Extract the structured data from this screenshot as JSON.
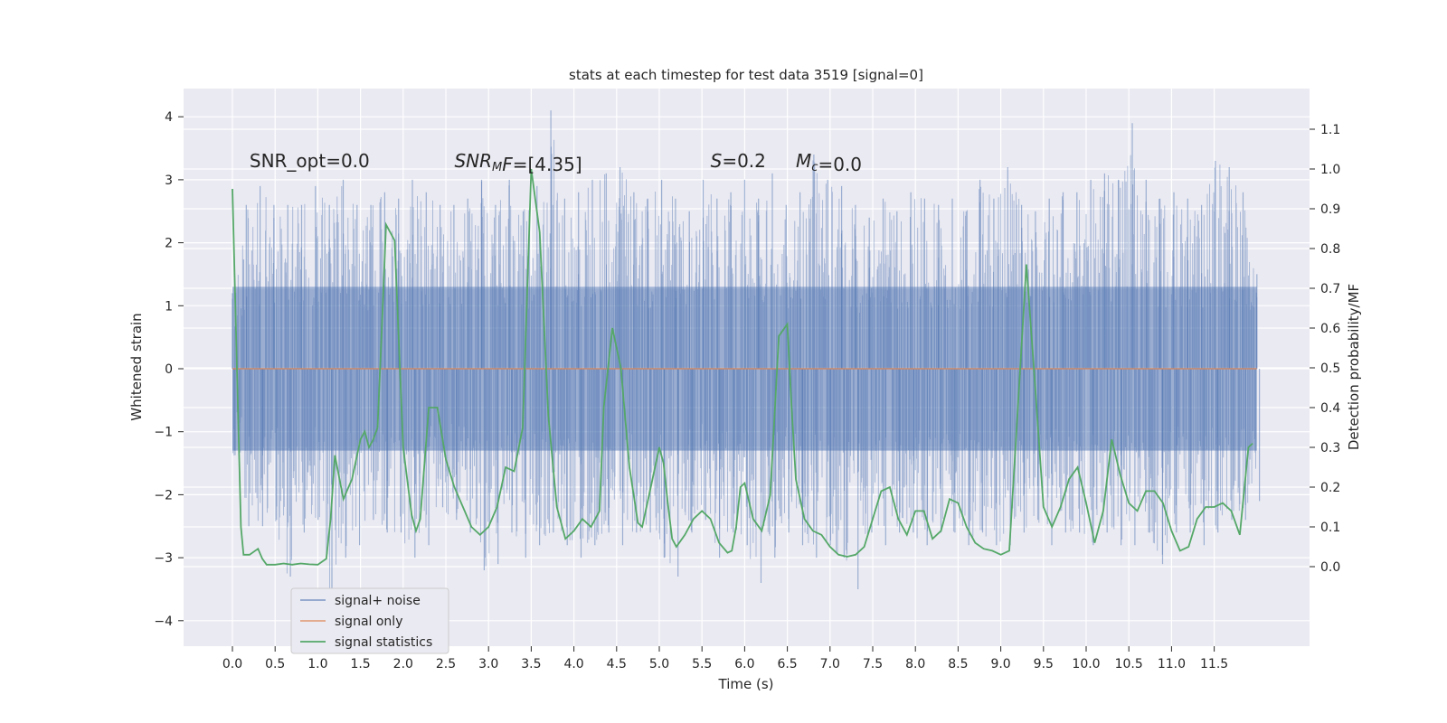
{
  "chart_data": {
    "type": "line",
    "title": "stats at each timestep for test data 3519 [signal=0]",
    "xlabel": "Time (s)",
    "ylabel": "Whitened strain",
    "ylabel_right": "Detection probability/MF",
    "xlim": [
      -0.5,
      12.7
    ],
    "ylim": [
      -4.4,
      4.4
    ],
    "ylim_right": [
      -0.2,
      1.2
    ],
    "x_ticks": [
      "0.0",
      "0.5",
      "1.0",
      "1.5",
      "2.0",
      "2.5",
      "3.0",
      "3.5",
      "4.0",
      "4.5",
      "5.0",
      "5.5",
      "6.0",
      "6.5",
      "7.0",
      "7.5",
      "8.0",
      "8.5",
      "9.0",
      "9.5",
      "10.0",
      "10.5",
      "11.0",
      "11.5"
    ],
    "y_ticks": [
      "4",
      "3",
      "2",
      "1",
      "0",
      "−1",
      "−2",
      "−3",
      "−4"
    ],
    "y_ticks_right": [
      "1.1",
      "1.0",
      "0.9",
      "0.8",
      "0.7",
      "0.6",
      "0.5",
      "0.4",
      "0.3",
      "0.2",
      "0.1",
      "0.0"
    ],
    "grid": true,
    "legend_position": "lower-left",
    "annotations": [
      {
        "text": "SNR_opt=0.0",
        "x": 0.2,
        "y": 3.3
      },
      {
        "text": "SNR_MF=[4.35]",
        "x": 2.6,
        "y": 3.3
      },
      {
        "text": "S=0.2",
        "x": 5.6,
        "y": 3.3
      },
      {
        "text": "M_c=0.0",
        "x": 6.6,
        "y": 3.3
      }
    ],
    "series": [
      {
        "name": "signal+ noise",
        "axis": "left",
        "color": "#4c72b0",
        "x_range": [
          0.0,
          12.0
        ],
        "envelope_upper": [
          1.2,
          2.6,
          2.9,
          2.6,
          2.6,
          2.6,
          2.9,
          2.6,
          3.0,
          2.6,
          2.6,
          2.8,
          2.7,
          3.0,
          2.8,
          2.6,
          2.6,
          2.7,
          3.0,
          2.6,
          3.0,
          2.5,
          2.9,
          4.1,
          2.7,
          2.8,
          3.0,
          3.1,
          3.2,
          2.8,
          2.7,
          3.0,
          2.7,
          2.5,
          3.0,
          2.7,
          2.8,
          3.0,
          2.7,
          3.1,
          2.6,
          2.8,
          3.4,
          3.0,
          2.9,
          2.6,
          2.4,
          2.7,
          2.5,
          2.8,
          2.7,
          2.6,
          2.7,
          2.5,
          3.0,
          2.7,
          3.2,
          2.6,
          2.5,
          2.7,
          2.8,
          2.8,
          3.0,
          3.1,
          3.0,
          3.9,
          3.0,
          2.7,
          2.8,
          2.7,
          2.6,
          3.3,
          3.2,
          2.8,
          1.5
        ],
        "envelope_lower": [
          -1.3,
          -2.5,
          -2.5,
          -2.4,
          -3.3,
          -2.6,
          -2.4,
          -3.6,
          -3.0,
          -2.8,
          -2.4,
          -2.6,
          -2.6,
          -3.0,
          -2.8,
          -2.2,
          -2.4,
          -2.6,
          -3.2,
          -3.1,
          -2.6,
          -3.0,
          -2.8,
          -2.6,
          -2.8,
          -3.0,
          -2.8,
          -2.6,
          -2.8,
          -2.6,
          -2.6,
          -3.0,
          -3.3,
          -2.6,
          -2.4,
          -3.0,
          -2.6,
          -2.8,
          -3.4,
          -3.0,
          -2.6,
          -2.8,
          -3.0,
          -2.8,
          -3.0,
          -3.5,
          -2.6,
          -2.8,
          -2.6,
          -2.6,
          -2.8,
          -2.6,
          -2.6,
          -2.8,
          -2.6,
          -2.8,
          -2.8,
          -2.6,
          -2.4,
          -2.8,
          -2.6,
          -2.6,
          -2.8,
          -2.6,
          -2.8,
          -2.8,
          -2.6,
          -3.1,
          -2.6,
          -2.6,
          -2.8,
          -2.6,
          -2.4,
          -2.4,
          -2.1
        ],
        "dense_band": [
          -1.3,
          1.3
        ]
      },
      {
        "name": "signal only",
        "axis": "left",
        "color": "#dd8452",
        "x": [
          0.0,
          12.0
        ],
        "y": [
          0.0,
          0.0
        ]
      },
      {
        "name": "signal statistics",
        "axis": "right",
        "color": "#55a868",
        "x": [
          0.0,
          0.1,
          0.13,
          0.2,
          0.3,
          0.35,
          0.4,
          0.5,
          0.6,
          0.7,
          0.8,
          0.9,
          1.0,
          1.1,
          1.15,
          1.2,
          1.3,
          1.4,
          1.5,
          1.55,
          1.6,
          1.65,
          1.7,
          1.75,
          1.8,
          1.9,
          2.0,
          2.1,
          2.15,
          2.2,
          2.3,
          2.4,
          2.5,
          2.6,
          2.7,
          2.8,
          2.9,
          3.0,
          3.1,
          3.2,
          3.3,
          3.4,
          3.5,
          3.6,
          3.7,
          3.8,
          3.9,
          4.0,
          4.1,
          4.2,
          4.3,
          4.35,
          4.45,
          4.55,
          4.65,
          4.75,
          4.8,
          4.9,
          5.0,
          5.05,
          5.1,
          5.15,
          5.2,
          5.3,
          5.4,
          5.5,
          5.6,
          5.7,
          5.8,
          5.85,
          5.9,
          5.95,
          6.0,
          6.1,
          6.2,
          6.3,
          6.4,
          6.5,
          6.55,
          6.6,
          6.7,
          6.8,
          6.9,
          7.0,
          7.1,
          7.2,
          7.3,
          7.4,
          7.5,
          7.6,
          7.7,
          7.8,
          7.9,
          8.0,
          8.1,
          8.2,
          8.3,
          8.4,
          8.5,
          8.6,
          8.7,
          8.8,
          8.9,
          9.0,
          9.1,
          9.2,
          9.3,
          9.4,
          9.5,
          9.6,
          9.7,
          9.8,
          9.9,
          10.0,
          10.1,
          10.2,
          10.3,
          10.4,
          10.5,
          10.6,
          10.7,
          10.8,
          10.9,
          11.0,
          11.1,
          11.2,
          11.3,
          11.4,
          11.5,
          11.6,
          11.7,
          11.8,
          11.9,
          11.95
        ],
        "y": [
          0.95,
          0.1,
          0.03,
          0.03,
          0.045,
          0.02,
          0.005,
          0.005,
          0.008,
          0.005,
          0.008,
          0.006,
          0.005,
          0.02,
          0.12,
          0.28,
          0.17,
          0.22,
          0.32,
          0.34,
          0.3,
          0.32,
          0.35,
          0.6,
          0.86,
          0.82,
          0.3,
          0.13,
          0.09,
          0.12,
          0.4,
          0.4,
          0.27,
          0.2,
          0.15,
          0.1,
          0.08,
          0.1,
          0.15,
          0.25,
          0.24,
          0.35,
          1.0,
          0.84,
          0.38,
          0.15,
          0.07,
          0.09,
          0.12,
          0.1,
          0.14,
          0.4,
          0.6,
          0.5,
          0.25,
          0.11,
          0.1,
          0.2,
          0.3,
          0.26,
          0.16,
          0.07,
          0.05,
          0.08,
          0.12,
          0.14,
          0.12,
          0.06,
          0.035,
          0.04,
          0.1,
          0.2,
          0.21,
          0.12,
          0.09,
          0.18,
          0.58,
          0.61,
          0.4,
          0.22,
          0.12,
          0.09,
          0.08,
          0.05,
          0.03,
          0.025,
          0.03,
          0.05,
          0.12,
          0.19,
          0.2,
          0.12,
          0.08,
          0.14,
          0.14,
          0.07,
          0.09,
          0.17,
          0.16,
          0.1,
          0.06,
          0.045,
          0.04,
          0.03,
          0.04,
          0.4,
          0.76,
          0.46,
          0.15,
          0.1,
          0.15,
          0.22,
          0.25,
          0.16,
          0.06,
          0.14,
          0.32,
          0.23,
          0.16,
          0.14,
          0.19,
          0.19,
          0.16,
          0.09,
          0.04,
          0.05,
          0.12,
          0.15,
          0.15,
          0.16,
          0.14,
          0.08,
          0.3,
          0.31
        ]
      }
    ],
    "legend": [
      {
        "label": "signal+ noise",
        "color": "#4c72b0"
      },
      {
        "label": "signal only",
        "color": "#dd8452"
      },
      {
        "label": "signal statistics",
        "color": "#55a868"
      }
    ]
  }
}
